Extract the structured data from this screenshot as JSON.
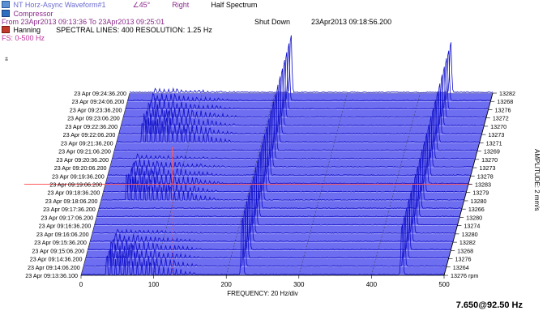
{
  "header": {
    "line1": {
      "title": "NT Horz-Async Waveform#1",
      "angle": "∠45°",
      "view": "Right",
      "spectrum": "Half Spectrum"
    },
    "line2": "Compressor",
    "line3": {
      "range": "From 23Apr2013 09:13:36 To 23Apr2013 09:25:01",
      "event": "Shut Down",
      "event_time": "23Apr2013 09:18:56.200"
    },
    "line4": {
      "window": "Hanning",
      "spectral": "SPECTRAL LINES: 400   RESOLUTION: 1.25 Hz"
    },
    "line5": "FS: 0-500 Hz",
    "scale_icon": "⩲"
  },
  "readout": "7.650@92.50 Hz",
  "icons": {
    "title": "check-icon",
    "compressor": "compressor-icon",
    "window": "hanning-icon"
  },
  "colors": {
    "trace": "#1010c8",
    "background": "#6e6ef0",
    "cursor": "#ff5a5a",
    "header_purple": "#8b2a8b"
  },
  "chart_data": {
    "type": "waterfall",
    "xlabel": "FREQUENCY: 20 Hz/div",
    "ylabel": "AMPLITUDE: 2 mm/s",
    "x_ticks": [
      0,
      100,
      200,
      300,
      400,
      500
    ],
    "x_range": [
      0,
      500
    ],
    "timestamps": [
      "23 Apr 09:24:36.200",
      "23 Apr 09:24:06.200",
      "23 Apr 09:23:36.200",
      "23 Apr 09:23:06.200",
      "23 Apr 09:22:36.200",
      "23 Apr 09:22:06.200",
      "23 Apr 09:21:36.200",
      "23 Apr 09:21:06.200",
      "23 Apr 09:20:36.200",
      "23 Apr 09:20:06.200",
      "23 Apr 09:19:36.200",
      "23 Apr 09:19:06.200",
      "23 Apr 09:18:36.200",
      "23 Apr 09:18:06.200",
      "23 Apr 09:17:36.200",
      "23 Apr 09:17:06.200",
      "23 Apr 09:16:36.200",
      "23 Apr 09:16:06.200",
      "23 Apr 09:15:36.200",
      "23 Apr 09:15:06.200",
      "23 Apr 09:14:36.200",
      "23 Apr 09:14:06.200",
      "23 Apr 09:13:36.100"
    ],
    "rpm": [
      13282,
      13268,
      13276,
      13272,
      13270,
      13273,
      13271,
      13269,
      13270,
      13273,
      13278,
      13283,
      13279,
      13280,
      13266,
      13280,
      13274,
      13280,
      13282,
      13268,
      13276,
      13264,
      13276
    ],
    "rpm_unit": "rpm",
    "peaks_hz": [
      222,
      442
    ],
    "cursor_time": "23 Apr 09:19:06.200",
    "cursor_freq_hz": 92.5,
    "cursor_amplitude": 7.65
  }
}
